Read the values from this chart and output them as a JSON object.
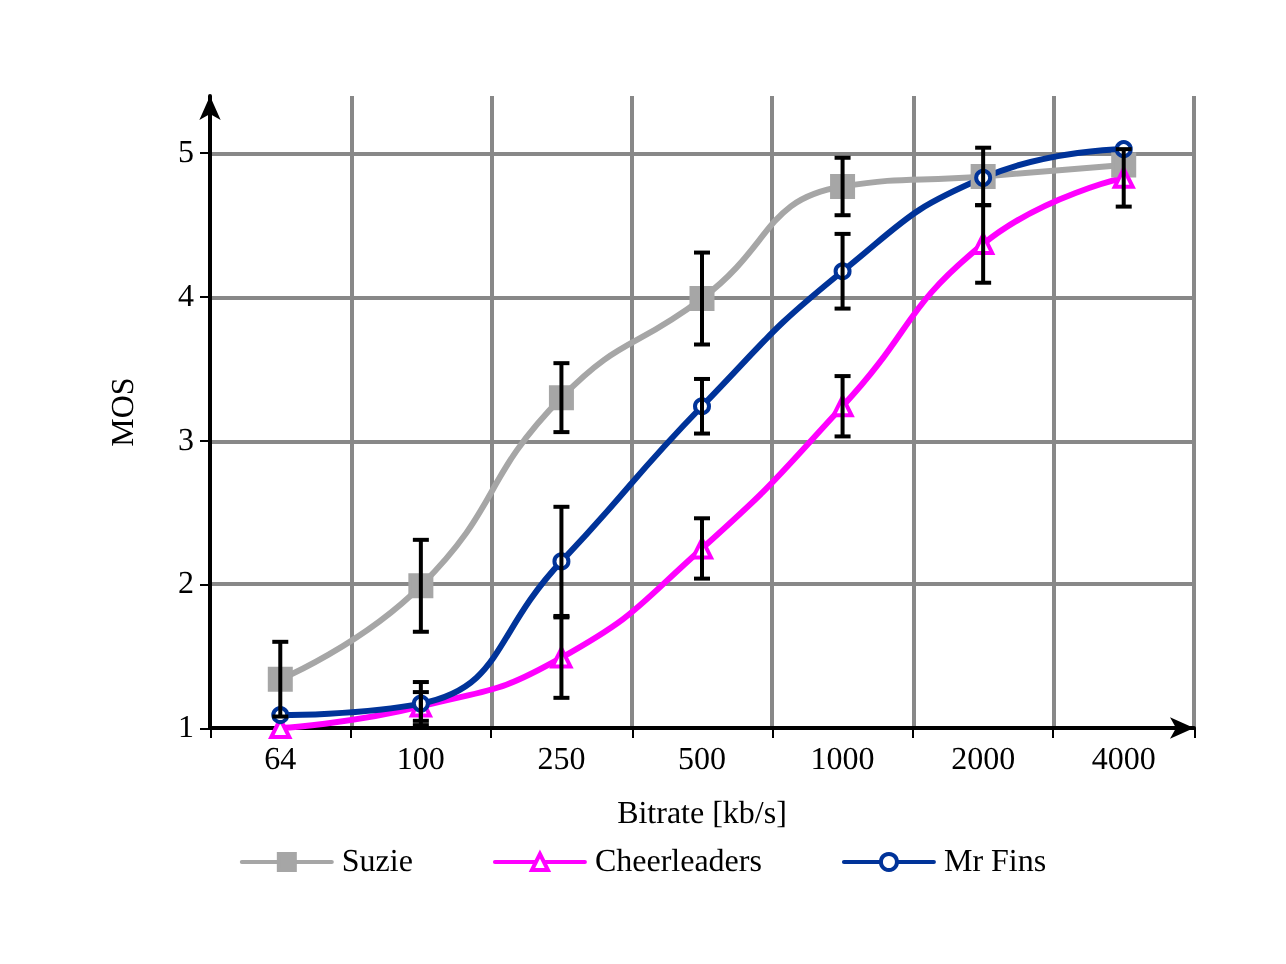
{
  "chart_data": {
    "type": "line",
    "xlabel": "Bitrate [kb/s]",
    "ylabel": "MOS",
    "categories": [
      "64",
      "100",
      "250",
      "500",
      "1000",
      "2000",
      "4000"
    ],
    "ylim": [
      1,
      5.4
    ],
    "yticks": [
      1,
      2,
      3,
      4,
      5
    ],
    "grid": true,
    "legend": "bottom",
    "line_style": "solid",
    "series": [
      {
        "name": "Suzie",
        "color": "#a6a6a6",
        "marker": "square",
        "values": [
          1.34,
          1.99,
          3.3,
          3.99,
          4.77,
          4.84,
          4.92
        ],
        "errors": [
          0.26,
          0.32,
          0.24,
          0.32,
          0.2,
          0.2,
          null
        ]
      },
      {
        "name": "Cheerleaders",
        "color": "#ff00ff",
        "marker": "triangle",
        "values": [
          1.0,
          1.15,
          1.49,
          2.25,
          3.24,
          4.37,
          4.83
        ],
        "errors": [
          null,
          0.1,
          0.28,
          0.21,
          0.21,
          0.27,
          0.2
        ]
      },
      {
        "name": "Mr Fins",
        "color": "#003399",
        "marker": "circle",
        "values": [
          1.09,
          1.17,
          2.16,
          3.24,
          4.18,
          4.83,
          5.03
        ],
        "errors": [
          null,
          0.15,
          0.38,
          0.19,
          0.26,
          null,
          null
        ]
      }
    ]
  }
}
